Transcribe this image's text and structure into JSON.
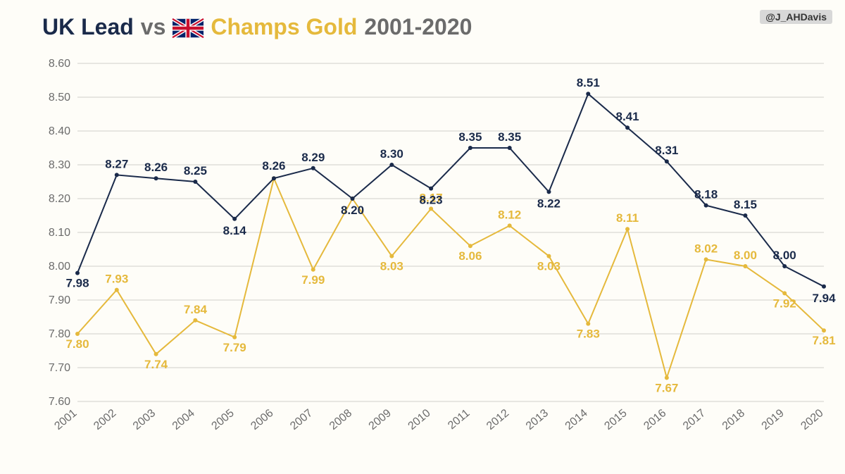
{
  "title": {
    "part1": "UK Lead",
    "vs": "vs",
    "part2": "Champs Gold",
    "years": "2001-2020",
    "fontsize": 32
  },
  "handle": "@J_AHDavis",
  "chart": {
    "type": "line",
    "background_color": "#fefdf8",
    "grid_color": "#d0d0ca",
    "axis_font_color": "#6b6b6b",
    "axis_fontsize": 16,
    "years": [
      "2001",
      "2002",
      "2003",
      "2004",
      "2005",
      "2006",
      "2007",
      "2008",
      "2009",
      "2010",
      "2011",
      "2012",
      "2013",
      "2014",
      "2015",
      "2016",
      "2017",
      "2018",
      "2019",
      "2020"
    ],
    "ylim": [
      7.6,
      8.6
    ],
    "ytick_step": 0.1,
    "series": {
      "uk_lead": {
        "color": "#1a2a4a",
        "line_width": 2,
        "label_fontsize": 17,
        "label_weight": "700",
        "values": [
          7.98,
          8.27,
          8.26,
          8.25,
          8.14,
          8.26,
          8.29,
          8.2,
          8.3,
          8.23,
          8.35,
          8.35,
          8.22,
          8.51,
          8.41,
          8.31,
          8.18,
          8.15,
          8.0,
          7.94
        ],
        "label_dy": [
          20,
          -10,
          -10,
          -10,
          22,
          -12,
          -10,
          22,
          -10,
          22,
          -10,
          -10,
          22,
          -10,
          -10,
          -10,
          -10,
          -10,
          -10,
          22
        ]
      },
      "champs_gold": {
        "color": "#e5b93c",
        "line_width": 2,
        "label_fontsize": 17,
        "label_weight": "700",
        "values": [
          7.8,
          7.93,
          7.74,
          7.84,
          7.79,
          8.26,
          7.99,
          8.2,
          8.03,
          8.17,
          8.06,
          8.12,
          8.03,
          7.83,
          8.11,
          7.67,
          8.02,
          8.0,
          7.92,
          7.81
        ],
        "label_dy": [
          20,
          -10,
          20,
          -10,
          20,
          20,
          20,
          -9,
          20,
          -10,
          20,
          -10,
          20,
          20,
          -10,
          20,
          -10,
          -10,
          20,
          20
        ],
        "suppress_label_at": [
          5,
          7
        ]
      }
    }
  }
}
